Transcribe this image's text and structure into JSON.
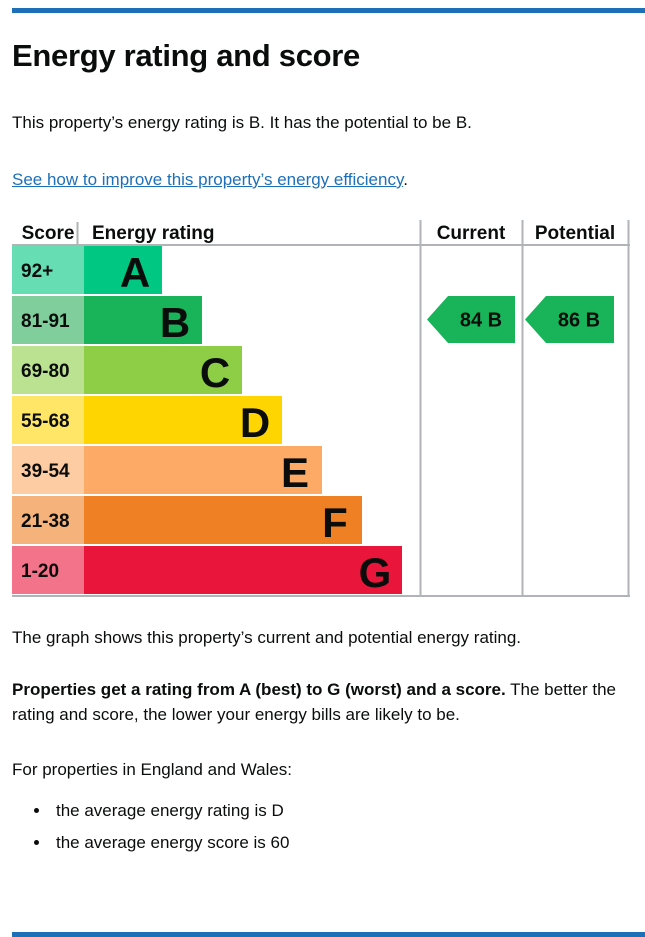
{
  "page": {
    "title": "Energy rating and score",
    "intro": "This property’s energy rating is B. It has the potential to be B.",
    "improve_link": "See how to improve this property’s energy efficiency",
    "improve_link_suffix": ".",
    "caption": "The graph shows this property’s current and potential energy rating.",
    "explain_bold": "Properties get a rating from A (best) to G (worst) and a score.",
    "explain_rest": "The better the rating and score, the lower your energy bills are likely to be.",
    "averages_intro": "For properties in England and Wales:",
    "averages": [
      "the average energy rating is D",
      "the average energy score is 60"
    ],
    "accent_color": "#1d70b8"
  },
  "chart_data": {
    "type": "bar",
    "title": "Energy rating and score",
    "headers": [
      "Score",
      "Energy rating",
      "Current",
      "Potential"
    ],
    "bands": [
      {
        "letter": "A",
        "score_range": "92+",
        "color": "#00c781",
        "score_cell_color": "#66ddb3"
      },
      {
        "letter": "B",
        "score_range": "81-91",
        "color": "#19b459",
        "score_cell_color": "#7fce9b"
      },
      {
        "letter": "C",
        "score_range": "69-80",
        "color": "#8dce46",
        "score_cell_color": "#bbe290"
      },
      {
        "letter": "D",
        "score_range": "55-68",
        "color": "#ffd500",
        "score_cell_color": "#ffe666"
      },
      {
        "letter": "E",
        "score_range": "39-54",
        "color": "#fcaa65",
        "score_cell_color": "#fdcca3"
      },
      {
        "letter": "F",
        "score_range": "21-38",
        "color": "#ef8023",
        "score_cell_color": "#f5b37b"
      },
      {
        "letter": "G",
        "score_range": "1-20",
        "color": "#e9153b",
        "score_cell_color": "#f2738a"
      }
    ],
    "current": {
      "label": "Current",
      "score": 84,
      "band": "B",
      "arrow_color": "#19b459"
    },
    "potential": {
      "label": "Potential",
      "score": 86,
      "band": "B",
      "arrow_color": "#19b459"
    },
    "grid_color": "#b1b4b6",
    "text_color": "#0b0c0c",
    "legend_position": "none",
    "grid": false
  }
}
